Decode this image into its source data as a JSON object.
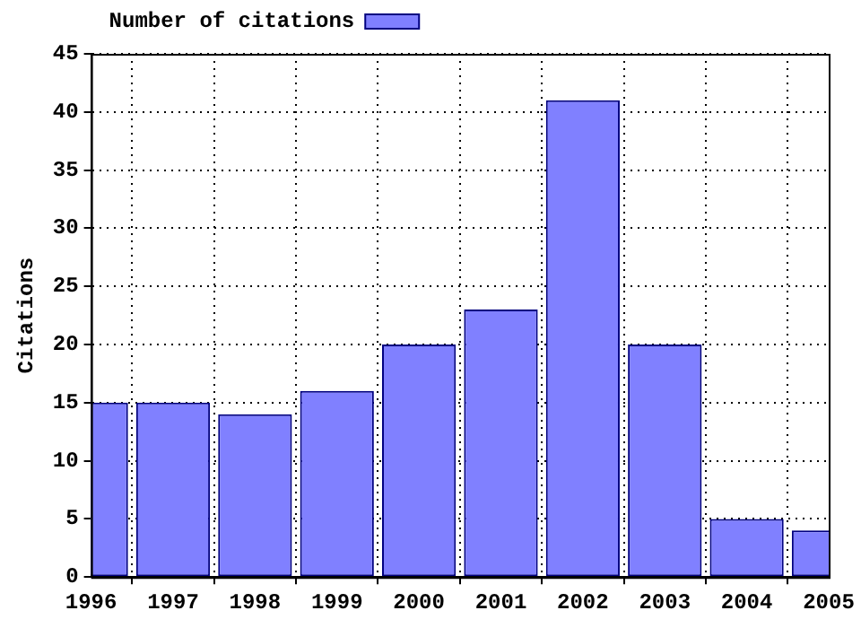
{
  "chart_data": {
    "type": "bar",
    "ylabel": "Citations",
    "x": [
      1996,
      1997,
      1998,
      1999,
      2000,
      2001,
      2002,
      2003,
      2004,
      2005
    ],
    "series": [
      {
        "name": "Number of citations",
        "color": "#8080ff",
        "values": [
          15,
          15,
          14,
          16,
          20,
          23,
          41,
          20,
          5,
          4
        ]
      }
    ],
    "xlim": [
      1996,
      2005
    ],
    "xticks": [
      1996,
      1997,
      1998,
      1999,
      2000,
      2001,
      2002,
      2003,
      2004,
      2005
    ],
    "ylim": [
      0,
      45
    ],
    "yticks": [
      0,
      5,
      10,
      15,
      20,
      25,
      30,
      35,
      40,
      45
    ],
    "grid": true,
    "legend": "top left"
  }
}
